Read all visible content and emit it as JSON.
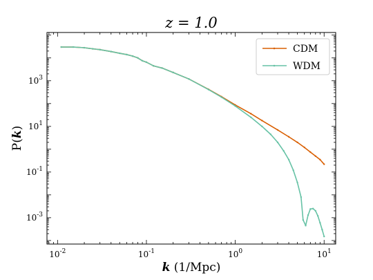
{
  "chart_data": {
    "type": "line",
    "title": "z = 1.0",
    "xlabel": "k (1/Mpc)",
    "ylabel": "P(k)",
    "xscale": "log",
    "yscale": "log",
    "xlim": [
      0.0076,
      13.5
    ],
    "ylim": [
      7e-05,
      130000
    ],
    "grid": false,
    "legend_position": "top-right",
    "x_ticks": [
      "10^-2",
      "10^-1",
      "10^0",
      "10^1"
    ],
    "y_ticks": [
      "10^3",
      "10^1",
      "10^-1",
      "10^-3"
    ],
    "series": [
      {
        "name": "CDM",
        "color": "#d95f02",
        "x": [
          0.011,
          0.015,
          0.02,
          0.025,
          0.03,
          0.04,
          0.05,
          0.06,
          0.07,
          0.08,
          0.09,
          0.1,
          0.12,
          0.15,
          0.2,
          0.3,
          0.5,
          0.7,
          1.0,
          1.5,
          2.0,
          3.0,
          4.0,
          5.0,
          6.0,
          7.0,
          8.0,
          9.0,
          10.0
        ],
        "y": [
          30000,
          30000,
          28000,
          25000,
          23000,
          19000,
          16000,
          14000,
          12000,
          10000,
          7500,
          6500,
          4500,
          3600,
          2300,
          1200,
          420,
          200,
          87,
          36,
          18,
          7.0,
          3.5,
          2.0,
          1.2,
          0.75,
          0.5,
          0.35,
          0.22
        ]
      },
      {
        "name": "WDM",
        "color": "#66c2a5",
        "x": [
          0.011,
          0.015,
          0.02,
          0.025,
          0.03,
          0.04,
          0.05,
          0.06,
          0.07,
          0.08,
          0.09,
          0.1,
          0.12,
          0.15,
          0.2,
          0.3,
          0.5,
          0.7,
          1.0,
          1.5,
          2.0,
          2.5,
          3.0,
          3.5,
          4.0,
          4.5,
          5.0,
          5.5,
          5.8,
          6.2,
          6.6,
          7.0,
          7.5,
          8.0,
          8.5,
          9.0,
          9.5,
          10.0
        ],
        "y": [
          30000,
          30000,
          28000,
          25000,
          23000,
          19000,
          16000,
          14000,
          12000,
          10000,
          7500,
          6500,
          4500,
          3600,
          2300,
          1200,
          410,
          190,
          78,
          25,
          10,
          4.5,
          2.0,
          0.85,
          0.35,
          0.12,
          0.035,
          0.008,
          0.0008,
          0.00045,
          0.0013,
          0.0024,
          0.0025,
          0.002,
          0.0012,
          0.0006,
          0.0003,
          0.00015
        ]
      }
    ]
  }
}
